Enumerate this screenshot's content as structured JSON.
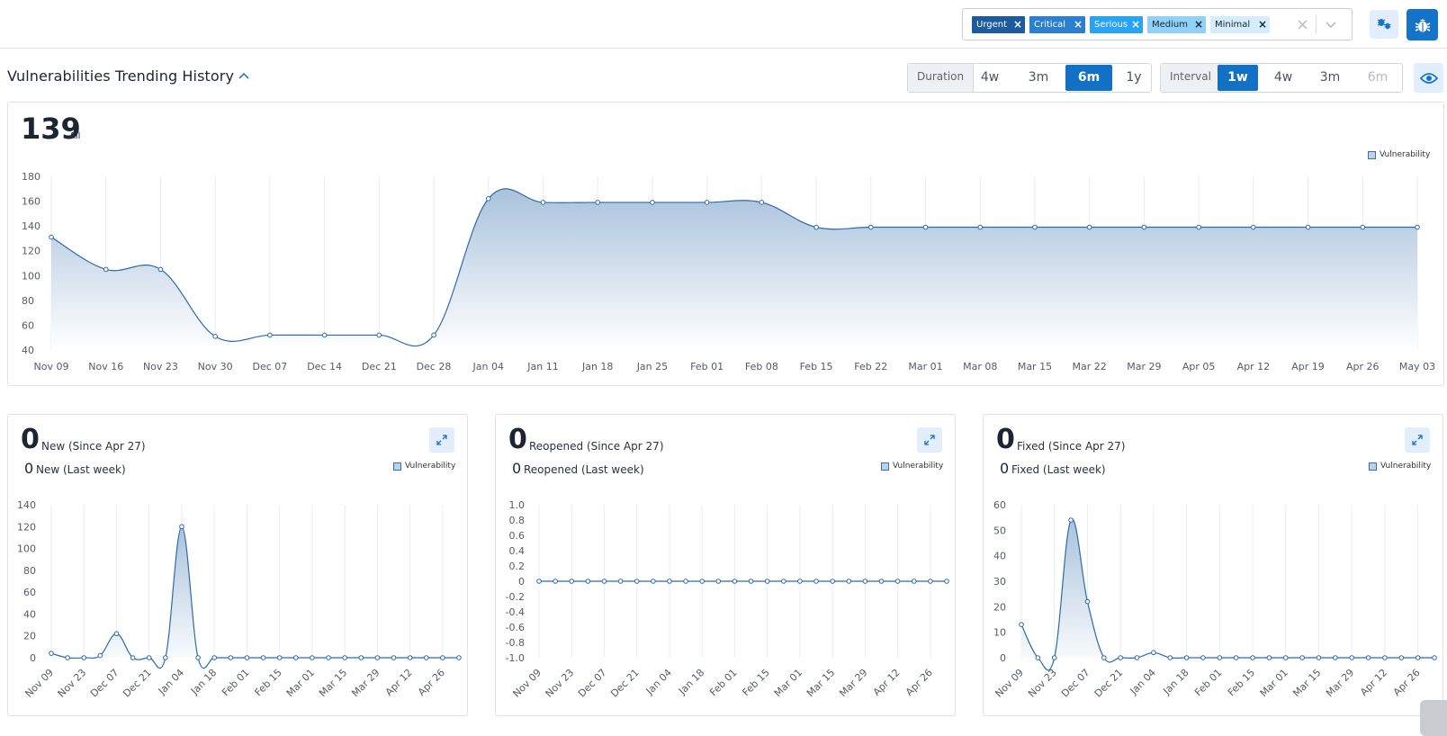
{
  "severity_filter": {
    "chips": [
      {
        "label": "Urgent",
        "bg": "#1d5b9c",
        "fg": "#ffffff"
      },
      {
        "label": "Critical",
        "bg": "#2b7fcf",
        "fg": "#ffffff"
      },
      {
        "label": "Serious",
        "bg": "#29a4f2",
        "fg": "#ffffff"
      },
      {
        "label": "Medium",
        "bg": "#8fd1f7",
        "fg": "#1a2533"
      },
      {
        "label": "Minimal",
        "bg": "#d4ecfb",
        "fg": "#1a2533"
      }
    ],
    "clear_icon": "clear-x-icon",
    "dropdown_icon": "chevron-down-icon"
  },
  "toolbar": {
    "bugs_icon": "bugs-icon",
    "bug_icon": "bug-icon"
  },
  "section": {
    "title": "Vulnerabilities Trending History"
  },
  "duration": {
    "label": "Duration",
    "options": [
      "4w",
      "3m",
      "6m",
      "1y"
    ],
    "selected": "6m"
  },
  "interval": {
    "label": "Interval",
    "options": [
      "1w",
      "4w",
      "3m",
      "6m"
    ],
    "selected": "1w",
    "disabled": [
      "6m"
    ]
  },
  "main_summary": {
    "count": "139",
    "label": "All",
    "legend": "Vulnerability"
  },
  "stats": [
    {
      "count": "0",
      "label": "New (Since Apr 27)",
      "count2": "0",
      "label2": "New (Last week)",
      "legend": "Vulnerability"
    },
    {
      "count": "0",
      "label": "Reopened (Since Apr 27)",
      "count2": "0",
      "label2": "Reopened (Last week)",
      "legend": "Vulnerability"
    },
    {
      "count": "0",
      "label": "Fixed (Since Apr 27)",
      "count2": "0",
      "label2": "Fixed (Last week)",
      "legend": "Vulnerability"
    }
  ],
  "colors": {
    "accent": "#1271c4",
    "line": "#2e6ba6",
    "fill_top": "#a9c2dc",
    "fill_bottom": "#ffffff"
  },
  "chart_data": [
    {
      "type": "area",
      "series": [
        {
          "name": "Vulnerability",
          "values": [
            131,
            105,
            105,
            51,
            52,
            52,
            52,
            52,
            162,
            159,
            159,
            159,
            159,
            159,
            139,
            139,
            139,
            139,
            139,
            139,
            139,
            139,
            139,
            139,
            139,
            139
          ]
        }
      ],
      "x": [
        "Nov 09",
        "Nov 16",
        "Nov 23",
        "Nov 30",
        "Dec 07",
        "Dec 14",
        "Dec 21",
        "Dec 28",
        "Jan 04",
        "Jan 11",
        "Jan 18",
        "Jan 25",
        "Feb 01",
        "Feb 08",
        "Feb 15",
        "Feb 22",
        "Mar 01",
        "Mar 08",
        "Mar 15",
        "Mar 22",
        "Mar 29",
        "Apr 05",
        "Apr 12",
        "Apr 19",
        "Apr 26",
        "May 03"
      ],
      "yticks": [
        "180",
        "160",
        "140",
        "120",
        "100",
        "80",
        "60",
        "40"
      ],
      "ylim": [
        40,
        180
      ],
      "legend": "top-right",
      "grid": true
    },
    {
      "type": "area",
      "series": [
        {
          "name": "Vulnerability",
          "values": [
            4,
            0,
            0,
            2,
            22,
            0,
            0,
            0,
            120,
            0,
            0,
            0,
            0,
            0,
            0,
            0,
            0,
            0,
            0,
            0,
            0,
            0,
            0,
            0,
            0,
            0
          ]
        }
      ],
      "x": [
        "Nov 09",
        "Nov 16",
        "Nov 23",
        "Nov 30",
        "Dec 07",
        "Dec 14",
        "Dec 21",
        "Dec 28",
        "Jan 04",
        "Jan 11",
        "Jan 18",
        "Jan 25",
        "Feb 01",
        "Feb 08",
        "Feb 15",
        "Feb 22",
        "Mar 01",
        "Mar 08",
        "Mar 15",
        "Mar 22",
        "Mar 29",
        "Apr 05",
        "Apr 12",
        "Apr 19",
        "Apr 26",
        "May 03"
      ],
      "xticks": [
        "Nov 09",
        "Nov 23",
        "Dec 07",
        "Dec 21",
        "Jan 04",
        "Jan 18",
        "Feb 01",
        "Feb 15",
        "Mar 01",
        "Mar 15",
        "Mar 29",
        "Apr 12",
        "Apr 26"
      ],
      "yticks": [
        "140",
        "120",
        "100",
        "80",
        "60",
        "40",
        "20",
        "0"
      ],
      "ylim": [
        0,
        140
      ],
      "legend": "top-right",
      "grid": true
    },
    {
      "type": "line",
      "series": [
        {
          "name": "Vulnerability",
          "values": [
            0,
            0,
            0,
            0,
            0,
            0,
            0,
            0,
            0,
            0,
            0,
            0,
            0,
            0,
            0,
            0,
            0,
            0,
            0,
            0,
            0,
            0,
            0,
            0,
            0,
            0
          ]
        }
      ],
      "x": [
        "Nov 09",
        "Nov 16",
        "Nov 23",
        "Nov 30",
        "Dec 07",
        "Dec 14",
        "Dec 21",
        "Dec 28",
        "Jan 04",
        "Jan 11",
        "Jan 18",
        "Jan 25",
        "Feb 01",
        "Feb 08",
        "Feb 15",
        "Feb 22",
        "Mar 01",
        "Mar 08",
        "Mar 15",
        "Mar 22",
        "Mar 29",
        "Apr 05",
        "Apr 12",
        "Apr 19",
        "Apr 26",
        "May 03"
      ],
      "xticks": [
        "Nov 09",
        "Nov 23",
        "Dec 07",
        "Dec 21",
        "Jan 04",
        "Jan 18",
        "Feb 01",
        "Feb 15",
        "Mar 01",
        "Mar 15",
        "Mar 29",
        "Apr 12",
        "Apr 26"
      ],
      "yticks": [
        "1.0",
        "0.8",
        "0.6",
        "0.4",
        "0.2",
        "0",
        "-0.2",
        "-0.4",
        "-0.6",
        "-0.8",
        "-1.0"
      ],
      "ylim": [
        -1,
        1
      ],
      "legend": "top-right",
      "grid": true
    },
    {
      "type": "area",
      "series": [
        {
          "name": "Vulnerability",
          "values": [
            13,
            0,
            0,
            54,
            22,
            0,
            0,
            0,
            2,
            0,
            0,
            0,
            0,
            0,
            0,
            0,
            0,
            0,
            0,
            0,
            0,
            0,
            0,
            0,
            0,
            0
          ]
        }
      ],
      "x": [
        "Nov 09",
        "Nov 16",
        "Nov 23",
        "Nov 30",
        "Dec 07",
        "Dec 14",
        "Dec 21",
        "Dec 28",
        "Jan 04",
        "Jan 11",
        "Jan 18",
        "Jan 25",
        "Feb 01",
        "Feb 08",
        "Feb 15",
        "Feb 22",
        "Mar 01",
        "Mar 08",
        "Mar 15",
        "Mar 22",
        "Mar 29",
        "Apr 05",
        "Apr 12",
        "Apr 19",
        "Apr 26",
        "May 03"
      ],
      "xticks": [
        "Nov 09",
        "Nov 23",
        "Dec 07",
        "Dec 21",
        "Jan 04",
        "Jan 18",
        "Feb 01",
        "Feb 15",
        "Mar 01",
        "Mar 15",
        "Mar 29",
        "Apr 12",
        "Apr 26"
      ],
      "yticks": [
        "60",
        "50",
        "40",
        "30",
        "20",
        "10",
        "0"
      ],
      "ylim": [
        0,
        60
      ],
      "legend": "top-right",
      "grid": true
    }
  ]
}
